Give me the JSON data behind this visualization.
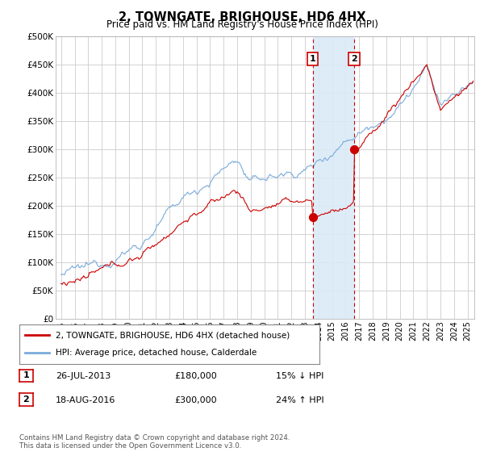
{
  "title": "2, TOWNGATE, BRIGHOUSE, HD6 4HX",
  "subtitle": "Price paid vs. HM Land Registry's House Price Index (HPI)",
  "hpi_color": "#7aabdb",
  "price_color": "#cc0000",
  "transaction1_year": 2013.58,
  "transaction1_price": 180000,
  "transaction2_year": 2016.63,
  "transaction2_price": 300000,
  "transaction1_date": "26-JUL-2013",
  "transaction2_date": "18-AUG-2016",
  "transaction1_pct": "15% ↓ HPI",
  "transaction2_pct": "24% ↑ HPI",
  "legend_line1": "2, TOWNGATE, BRIGHOUSE, HD6 4HX (detached house)",
  "legend_line2": "HPI: Average price, detached house, Calderdale",
  "footer": "Contains HM Land Registry data © Crown copyright and database right 2024.\nThis data is licensed under the Open Government Licence v3.0.",
  "background_color": "#ffffff",
  "grid_color": "#cccccc",
  "shade_color": "#dbeaf7",
  "ytick_labels": [
    "£0",
    "£50K",
    "£100K",
    "£150K",
    "£200K",
    "£250K",
    "£300K",
    "£350K",
    "£400K",
    "£450K",
    "£500K"
  ],
  "ytick_values": [
    0,
    50000,
    100000,
    150000,
    200000,
    250000,
    300000,
    350000,
    400000,
    450000,
    500000
  ]
}
